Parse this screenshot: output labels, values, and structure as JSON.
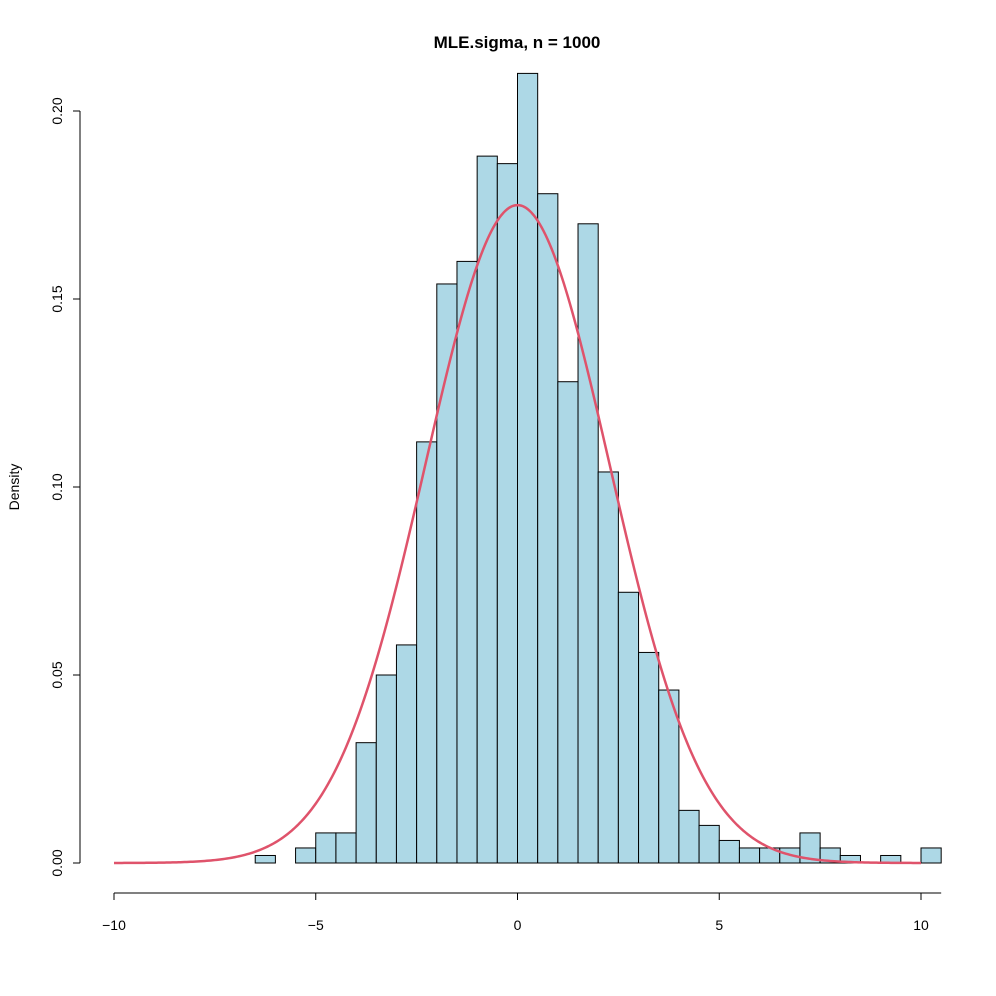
{
  "chart_data": {
    "type": "bar",
    "title": "MLE.sigma, n = 1000",
    "xlabel": "",
    "ylabel": "Density",
    "xlim": [
      -10,
      10.5
    ],
    "ylim": [
      0,
      0.2
    ],
    "xticks": [
      -10,
      -5,
      0,
      5,
      10
    ],
    "xtick_labels": [
      "−10",
      "−5",
      "0",
      "5",
      "10"
    ],
    "yticks": [
      0,
      0.05,
      0.1,
      0.15,
      0.2
    ],
    "ytick_labels": [
      "0.00",
      "0.05",
      "0.10",
      "0.15",
      "0.20"
    ],
    "grid": false,
    "bar_fill": "#add8e6",
    "bar_stroke": "#000000",
    "curve_color": "#df536b",
    "histogram": {
      "bin_width": 0.5,
      "bin_starts": [
        -6.5,
        -6.0,
        -5.5,
        -5.0,
        -4.5,
        -4.0,
        -3.5,
        -3.0,
        -2.5,
        -2.0,
        -1.5,
        -1.0,
        -0.5,
        0.0,
        0.5,
        1.0,
        1.5,
        2.0,
        2.5,
        3.0,
        3.5,
        4.0,
        4.5,
        5.0,
        5.5,
        6.0,
        6.5,
        7.0,
        7.5,
        8.0,
        8.5,
        9.0,
        9.5,
        10.0
      ],
      "density": [
        0.002,
        0.0,
        0.004,
        0.008,
        0.008,
        0.032,
        0.05,
        0.058,
        0.112,
        0.154,
        0.16,
        0.188,
        0.186,
        0.21,
        0.178,
        0.128,
        0.17,
        0.104,
        0.072,
        0.056,
        0.046,
        0.014,
        0.01,
        0.006,
        0.004,
        0.004,
        0.004,
        0.008,
        0.004,
        0.002,
        0.0,
        0.002,
        0.0,
        0.004
      ]
    },
    "density_curve": {
      "name": "",
      "distribution": "normal",
      "mean": 0.0,
      "sd": 2.28,
      "x_range": [
        -10,
        10
      ]
    }
  }
}
